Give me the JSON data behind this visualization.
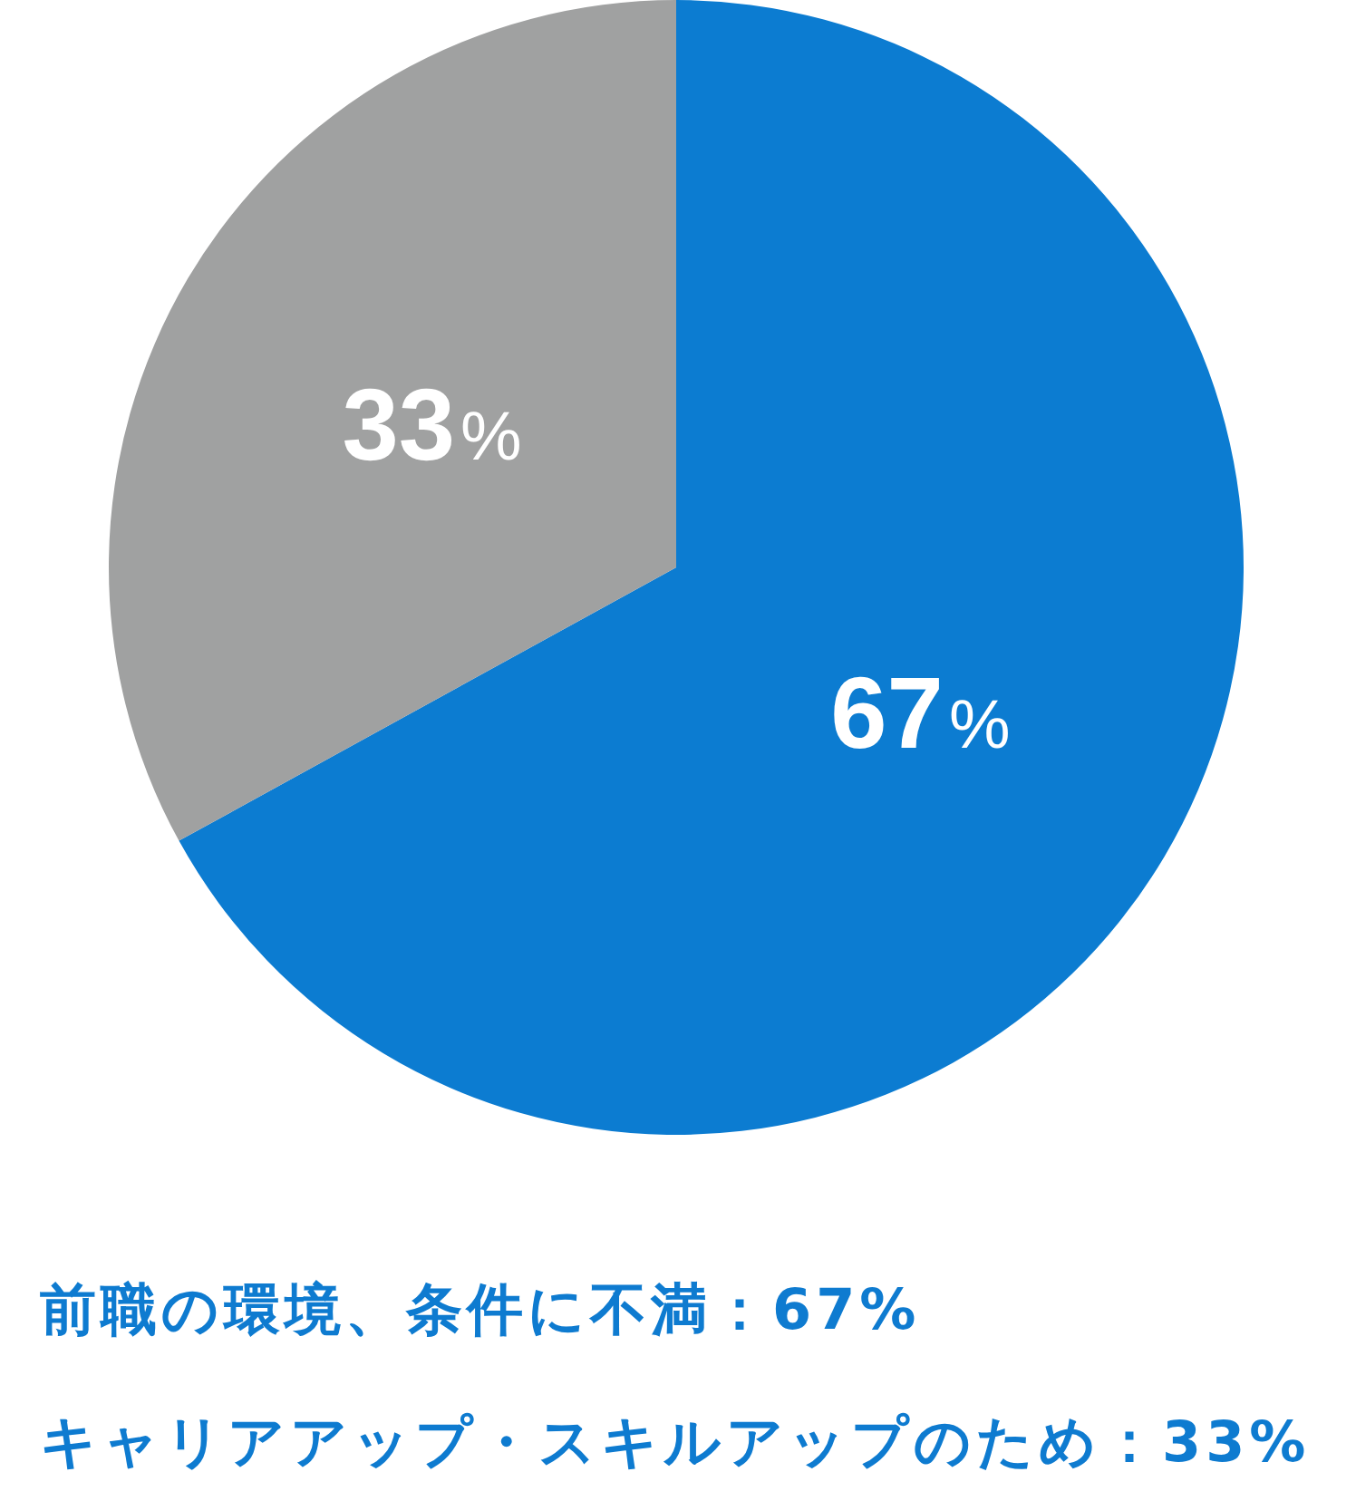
{
  "chart_data": {
    "type": "pie",
    "categories": [
      null,
      null
    ],
    "values": [
      67,
      33
    ],
    "colors": [
      "#0c7cd1",
      "#a0a1a1"
    ],
    "value_labels": [
      "67%",
      "33%"
    ],
    "annotations": [
      "前職の環境、条件に不満：67%",
      "キャリアアップ・スキルアップのため：33%"
    ]
  }
}
